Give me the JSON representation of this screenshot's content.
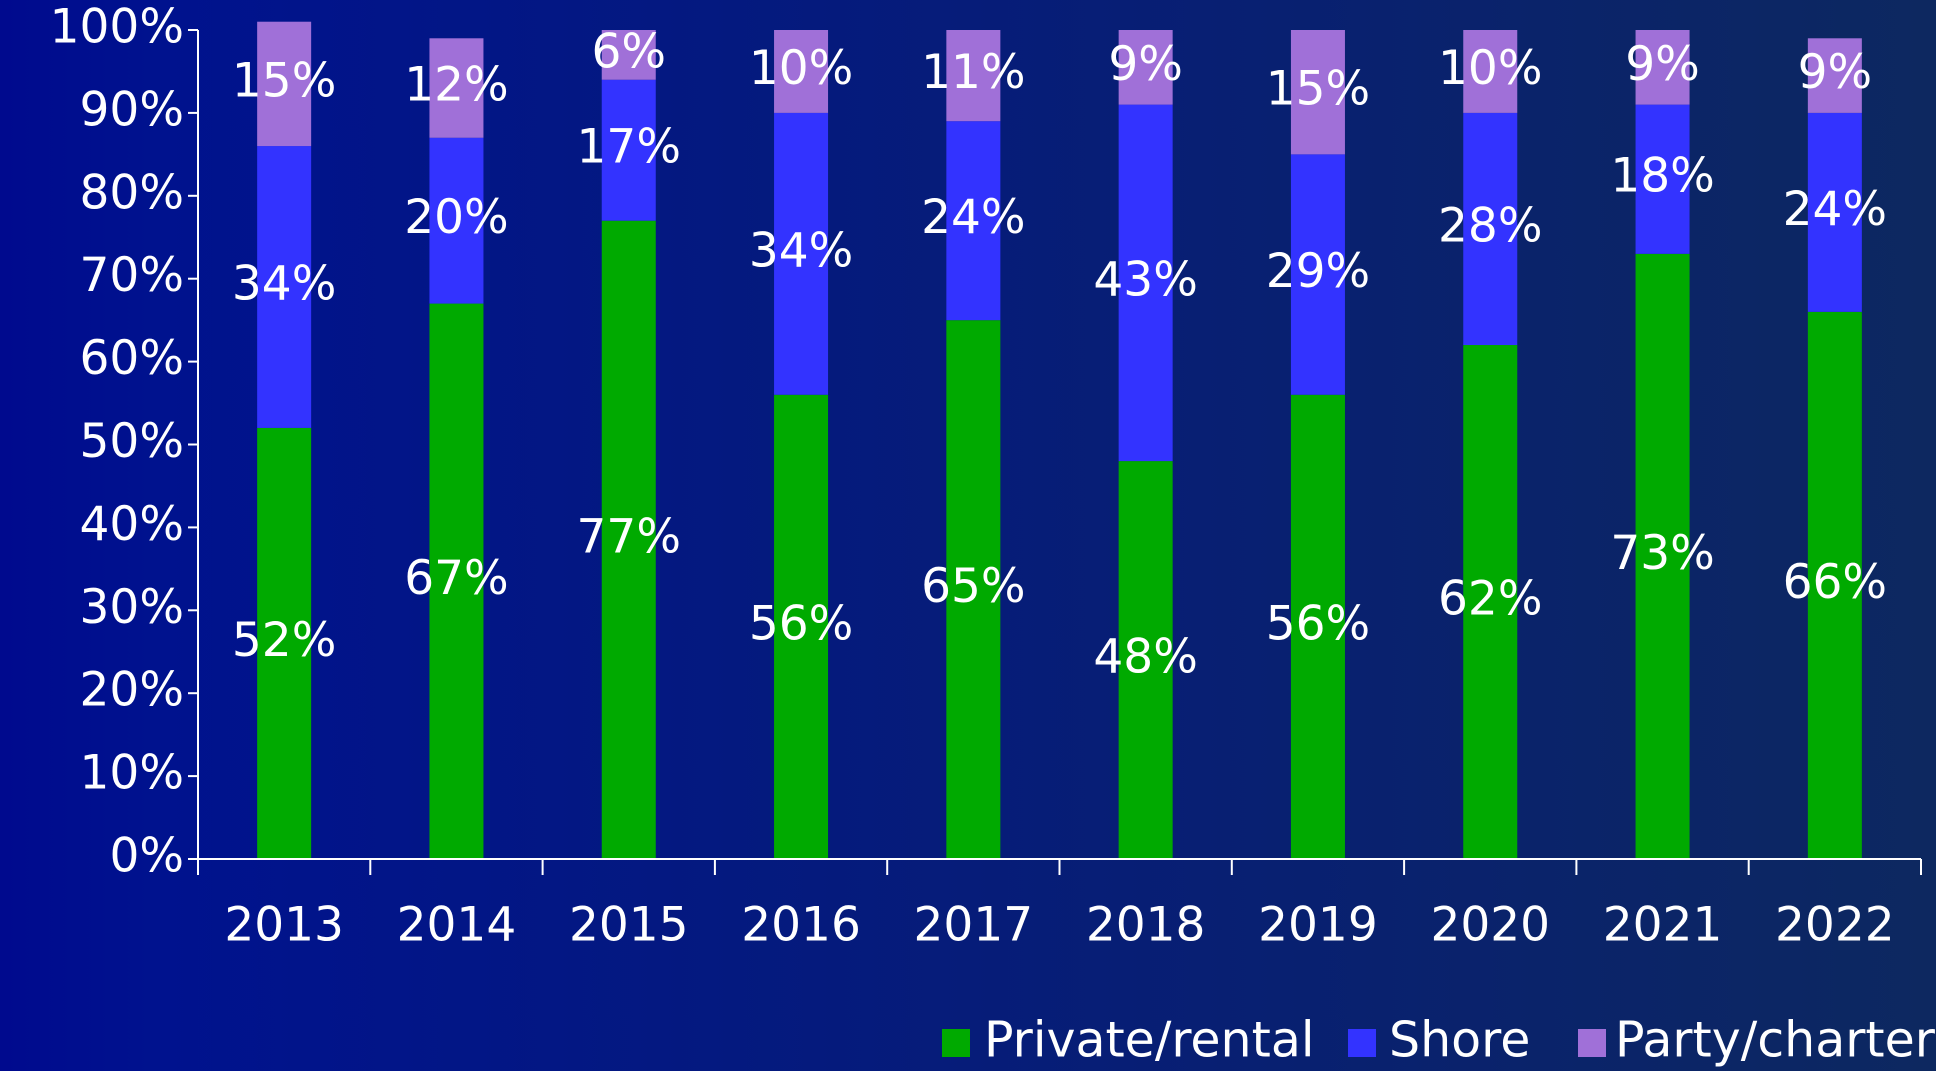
{
  "chart_data": {
    "type": "bar",
    "stacked": true,
    "categories": [
      "2013",
      "2014",
      "2015",
      "2016",
      "2017",
      "2018",
      "2019",
      "2020",
      "2021",
      "2022"
    ],
    "series": [
      {
        "name": "Private/rental",
        "color": "#00aa00",
        "values": [
          52,
          67,
          77,
          56,
          65,
          48,
          56,
          62,
          73,
          66
        ],
        "value_labels": [
          "52%",
          "67%",
          "77%",
          "56%",
          "65%",
          "48%",
          "56%",
          "62%",
          "73%",
          "66%"
        ]
      },
      {
        "name": "Shore",
        "color": "#3333ff",
        "values": [
          34,
          20,
          17,
          34,
          24,
          43,
          29,
          28,
          18,
          24
        ],
        "value_labels": [
          "34%",
          "20%",
          "17%",
          "34%",
          "24%",
          "43%",
          "29%",
          "28%",
          "18%",
          "24%"
        ]
      },
      {
        "name": "Party/charter",
        "color": "#a070d8",
        "values": [
          15,
          12,
          6,
          10,
          11,
          9,
          15,
          10,
          9,
          9
        ],
        "value_labels": [
          "15%",
          "12%",
          "6%",
          "10%",
          "11%",
          "9%",
          "15%",
          "10%",
          "9%",
          "9%"
        ]
      }
    ],
    "ylim": [
      0,
      100
    ],
    "yticks": [
      {
        "value": 0,
        "label": "0%"
      },
      {
        "value": 10,
        "label": "10%"
      },
      {
        "value": 20,
        "label": "20%"
      },
      {
        "value": 30,
        "label": "30%"
      },
      {
        "value": 40,
        "label": "40%"
      },
      {
        "value": 50,
        "label": "50%"
      },
      {
        "value": 60,
        "label": "60%"
      },
      {
        "value": 70,
        "label": "70%"
      },
      {
        "value": 80,
        "label": "80%"
      },
      {
        "value": 90,
        "label": "90%"
      },
      {
        "value": 100,
        "label": "100%"
      }
    ],
    "legend": "bottom-right",
    "grid": false
  }
}
